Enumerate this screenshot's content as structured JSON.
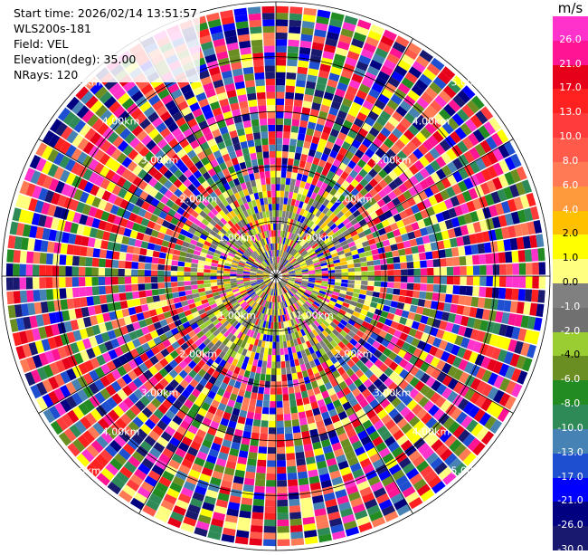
{
  "info": {
    "start_time": "Start time: 2026/02/14 13:51:57",
    "site": "WLS200s-181",
    "field": "Field: VEL",
    "elevation": "Elevation(deg): 35.00",
    "nrays": "NRays: 120"
  },
  "colorbar": {
    "unit": "m/s",
    "ticks": [
      "26.0",
      "21.0",
      "17.0",
      "13.0",
      "10.0",
      "8.0",
      "6.0",
      "4.0",
      "2.0",
      "1.0",
      "0.0",
      "-1.0",
      "-2.0",
      "-4.0",
      "-6.0",
      "-8.0",
      "-10.0",
      "-13.0",
      "-17.0",
      "-21.0",
      "-26.0",
      "-30.0"
    ],
    "colors": [
      "#ff33cc",
      "#ff1493",
      "#e6001a",
      "#ff2020",
      "#ff3b3b",
      "#ff5a4a",
      "#ff7a55",
      "#ff9a3c",
      "#ffc000",
      "#ffff00",
      "#ffff80",
      "#808080",
      "#707070",
      "#9acd32",
      "#6b8e23",
      "#228b22",
      "#2e8b57",
      "#4682b4",
      "#1e4fd0",
      "#0000ff",
      "#000080",
      "#191970"
    ]
  },
  "chart_data": {
    "type": "heatmap",
    "title": "",
    "field": "VEL",
    "units": "m/s",
    "n_rays": 120,
    "elevation_deg": 35.0,
    "range_rings_km": [
      1,
      2,
      3,
      4,
      5
    ],
    "range_ring_labels": [
      "1.00km",
      "2.00km",
      "3.00km",
      "4.00km",
      "5.00km"
    ],
    "max_range_km": 5.0,
    "grid": true
  }
}
